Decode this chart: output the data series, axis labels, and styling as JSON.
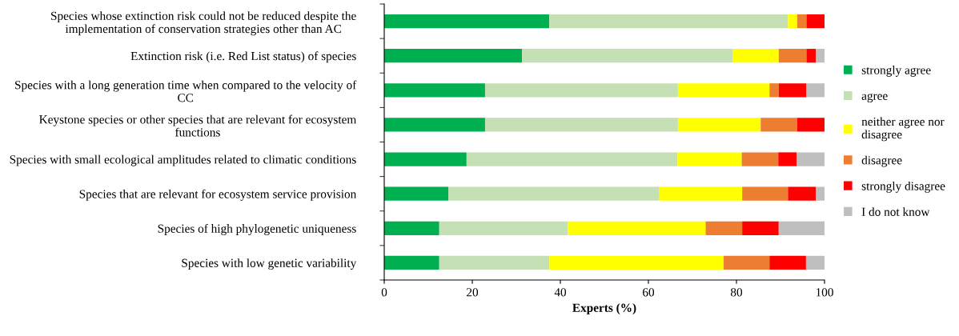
{
  "chart_data": {
    "type": "bar",
    "orientation": "horizontal",
    "stacked": true,
    "xlabel": "Experts (%)",
    "categories": [
      "Species whose extinction risk could not be reduced despite the\nimplementation of conservation strategies other than AC",
      "Extinction risk (i.e. Red List status) of species",
      "Species with a long generation time when compared to the velocity of\nCC",
      "Keystone species or other species that are relevant for ecosystem\nfunctions",
      "Species with small ecological amplitudes related to climatic conditions",
      "Species that are relevant for ecosystem service provision",
      "Species of high phylogenetic uniqueness",
      "Species with low genetic variability"
    ],
    "series": [
      {
        "name": "strongly agree",
        "color": "#00b050",
        "values": [
          37.5,
          31.3,
          22.9,
          22.9,
          18.7,
          14.6,
          12.5,
          12.5
        ]
      },
      {
        "name": "agree",
        "color": "#c5e0b4",
        "values": [
          54.2,
          47.9,
          43.8,
          43.8,
          47.9,
          47.9,
          29.2,
          25.0
        ]
      },
      {
        "name": "neither agree nor\ndisagree",
        "color": "#ffff00",
        "values": [
          2.1,
          10.4,
          20.8,
          18.8,
          14.6,
          18.8,
          31.3,
          39.6
        ]
      },
      {
        "name": "disagree",
        "color": "#ed7d31",
        "values": [
          2.1,
          6.3,
          2.1,
          8.3,
          8.3,
          10.4,
          8.3,
          10.4
        ]
      },
      {
        "name": "strongly disagree",
        "color": "#ff0000",
        "values": [
          4.2,
          2.1,
          6.3,
          6.3,
          4.2,
          6.3,
          8.3,
          8.3
        ]
      },
      {
        "name": "I do not know",
        "color": "#bfbfbf",
        "values": [
          0,
          2.0,
          4.2,
          0,
          6.3,
          2.1,
          10.4,
          4.2
        ]
      }
    ],
    "xlim": [
      0,
      100
    ],
    "xticks": [
      0,
      20,
      40,
      60,
      80,
      100
    ],
    "grid": false,
    "legend": "right"
  }
}
